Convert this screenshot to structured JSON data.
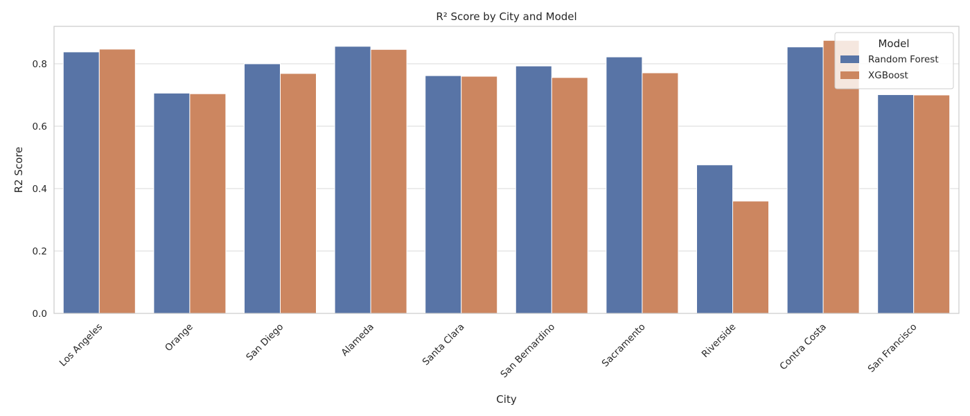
{
  "chart_data": {
    "type": "bar",
    "title": "R² Score by City and Model",
    "xlabel": "City",
    "ylabel": "R2 Score",
    "ylim": [
      0,
      0.92
    ],
    "yticks": [
      "0.0",
      "0.2",
      "0.4",
      "0.6",
      "0.8"
    ],
    "grid": true,
    "legend": {
      "title": "Model",
      "placement": "top-right"
    },
    "categories": [
      "Los Angeles",
      "Orange",
      "San Diego",
      "Alameda",
      "Santa Clara",
      "San Bernardino",
      "Sacramento",
      "Riverside",
      "Contra Costa",
      "San Francisco"
    ],
    "series": [
      {
        "name": "Random Forest",
        "color": "#5874a6",
        "values": [
          0.838,
          0.706,
          0.8,
          0.856,
          0.762,
          0.793,
          0.822,
          0.476,
          0.854,
          0.701
        ]
      },
      {
        "name": "XGBoost",
        "color": "#cc8660",
        "values": [
          0.847,
          0.704,
          0.769,
          0.846,
          0.76,
          0.756,
          0.771,
          0.36,
          0.875,
          0.7
        ]
      }
    ]
  }
}
